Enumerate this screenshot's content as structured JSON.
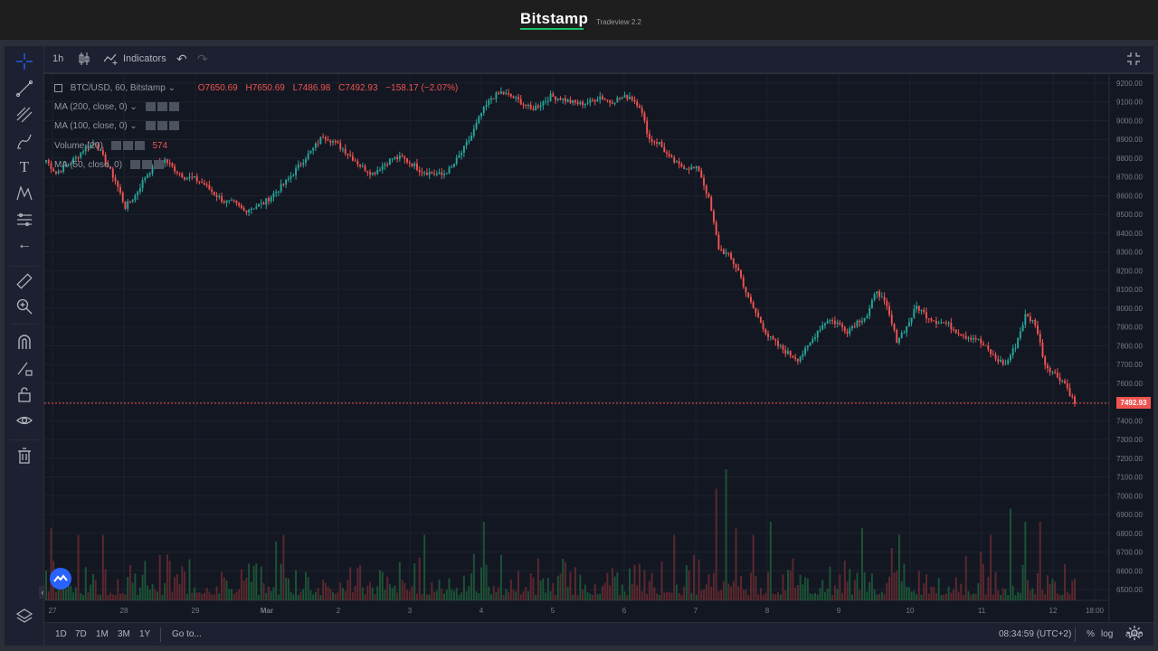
{
  "header": {
    "brand": "Bitstamp",
    "subtitle": "Tradeview 2.2"
  },
  "toolbar": {
    "interval": "1h",
    "indicators_label": "Indicators",
    "fullscreen_icon": "fullscreen-icon"
  },
  "legend": {
    "symbol": "BTC/USD, 60, Bitstamp",
    "open": "O7650.69",
    "high": "H7650.69",
    "low": "L7486.98",
    "close": "C7492.93",
    "change": "−158.17 (−2.07%)",
    "indicators": [
      {
        "label": "MA (200, close, 0)",
        "value": ""
      },
      {
        "label": "MA (100, close, 0)",
        "value": ""
      },
      {
        "label": "Volume (20)",
        "value": "574"
      },
      {
        "label": "MA (50, close, 0)",
        "value": ""
      }
    ]
  },
  "bottom_bar": {
    "ranges": [
      "1D",
      "7D",
      "1M",
      "3M",
      "1Y"
    ],
    "goto_label": "Go to...",
    "clock": "08:34:59 (UTC+2)",
    "percent": "%",
    "log": "log",
    "auto": "auto"
  },
  "colors": {
    "up": "#26a69a",
    "down": "#ef5350",
    "bg": "#131722",
    "grid": "#1f2330"
  },
  "last_price_label": "7492.93",
  "chart_data": {
    "type": "candlestick",
    "symbol": "BTC/USD",
    "interval": "60",
    "exchange": "Bitstamp",
    "y_axis": {
      "ticks": [
        "9200.00",
        "9100.00",
        "9000.00",
        "8900.00",
        "8800.00",
        "8700.00",
        "8600.00",
        "8500.00",
        "8400.00",
        "8300.00",
        "8200.00",
        "8100.00",
        "8000.00",
        "7900.00",
        "7800.00",
        "7700.00",
        "7600.00",
        "7500.00",
        "7400.00",
        "7300.00",
        "7200.00",
        "7100.00",
        "7000.00",
        "6900.00",
        "6800.00",
        "6700.00",
        "6600.00",
        "6500.00"
      ],
      "range": [
        6450,
        9250
      ]
    },
    "x_axis": {
      "ticks": [
        "27",
        "28",
        "29",
        "Mar",
        "2",
        "3",
        "4",
        "5",
        "6",
        "7",
        "8",
        "9",
        "10",
        "11",
        "12",
        "18:00"
      ]
    },
    "price_path": [
      [
        0,
        8790
      ],
      [
        4,
        8720
      ],
      [
        8,
        8760
      ],
      [
        12,
        8800
      ],
      [
        16,
        8860
      ],
      [
        20,
        8880
      ],
      [
        24,
        8780
      ],
      [
        28,
        8680
      ],
      [
        32,
        8540
      ],
      [
        36,
        8600
      ],
      [
        40,
        8700
      ],
      [
        44,
        8760
      ],
      [
        48,
        8790
      ],
      [
        52,
        8740
      ],
      [
        56,
        8700
      ],
      [
        60,
        8690
      ],
      [
        64,
        8660
      ],
      [
        68,
        8610
      ],
      [
        72,
        8570
      ],
      [
        76,
        8560
      ],
      [
        80,
        8520
      ],
      [
        84,
        8540
      ],
      [
        88,
        8560
      ],
      [
        92,
        8610
      ],
      [
        96,
        8660
      ],
      [
        100,
        8720
      ],
      [
        104,
        8790
      ],
      [
        108,
        8850
      ],
      [
        112,
        8920
      ],
      [
        116,
        8890
      ],
      [
        120,
        8850
      ],
      [
        124,
        8800
      ],
      [
        128,
        8750
      ],
      [
        132,
        8720
      ],
      [
        136,
        8760
      ],
      [
        140,
        8800
      ],
      [
        144,
        8800
      ],
      [
        148,
        8770
      ],
      [
        152,
        8730
      ],
      [
        156,
        8720
      ],
      [
        160,
        8710
      ],
      [
        164,
        8750
      ],
      [
        168,
        8830
      ],
      [
        172,
        8920
      ],
      [
        176,
        9040
      ],
      [
        180,
        9120
      ],
      [
        184,
        9150
      ],
      [
        188,
        9130
      ],
      [
        192,
        9100
      ],
      [
        196,
        9060
      ],
      [
        200,
        9090
      ],
      [
        204,
        9130
      ],
      [
        208,
        9120
      ],
      [
        212,
        9100
      ],
      [
        216,
        9090
      ],
      [
        220,
        9100
      ],
      [
        224,
        9130
      ],
      [
        228,
        9100
      ],
      [
        232,
        9120
      ],
      [
        236,
        9130
      ],
      [
        240,
        9080
      ],
      [
        244,
        8900
      ],
      [
        248,
        8880
      ],
      [
        252,
        8800
      ],
      [
        256,
        8760
      ],
      [
        260,
        8750
      ],
      [
        264,
        8740
      ],
      [
        268,
        8580
      ],
      [
        272,
        8320
      ],
      [
        276,
        8280
      ],
      [
        280,
        8200
      ],
      [
        284,
        8050
      ],
      [
        288,
        7950
      ],
      [
        292,
        7850
      ],
      [
        296,
        7800
      ],
      [
        300,
        7760
      ],
      [
        304,
        7730
      ],
      [
        308,
        7790
      ],
      [
        312,
        7880
      ],
      [
        316,
        7940
      ],
      [
        320,
        7920
      ],
      [
        324,
        7880
      ],
      [
        328,
        7930
      ],
      [
        332,
        7960
      ],
      [
        336,
        8100
      ],
      [
        340,
        8000
      ],
      [
        344,
        7830
      ],
      [
        348,
        7900
      ],
      [
        352,
        8010
      ],
      [
        356,
        7960
      ],
      [
        360,
        7930
      ],
      [
        364,
        7920
      ],
      [
        368,
        7880
      ],
      [
        372,
        7850
      ],
      [
        376,
        7840
      ],
      [
        380,
        7790
      ],
      [
        384,
        7730
      ],
      [
        388,
        7700
      ],
      [
        392,
        7800
      ],
      [
        396,
        7960
      ],
      [
        400,
        7920
      ],
      [
        404,
        7700
      ],
      [
        408,
        7650
      ],
      [
        412,
        7600
      ],
      [
        416,
        7492.93
      ]
    ],
    "volume": {
      "scale_note": "relative",
      "spikes": [
        [
          2,
          0.55
        ],
        [
          13,
          0.5
        ],
        [
          23,
          0.5
        ],
        [
          49,
          0.35
        ],
        [
          93,
          0.45
        ],
        [
          96,
          0.5
        ],
        [
          153,
          0.5
        ],
        [
          177,
          0.6
        ],
        [
          254,
          0.5
        ],
        [
          271,
          0.85
        ],
        [
          275,
          1.0
        ],
        [
          279,
          0.55
        ],
        [
          286,
          0.5
        ],
        [
          293,
          0.6
        ],
        [
          330,
          0.55
        ],
        [
          342,
          0.4
        ],
        [
          345,
          0.5
        ],
        [
          382,
          0.5
        ],
        [
          390,
          0.7
        ],
        [
          396,
          0.6
        ],
        [
          402,
          0.6
        ]
      ]
    }
  }
}
